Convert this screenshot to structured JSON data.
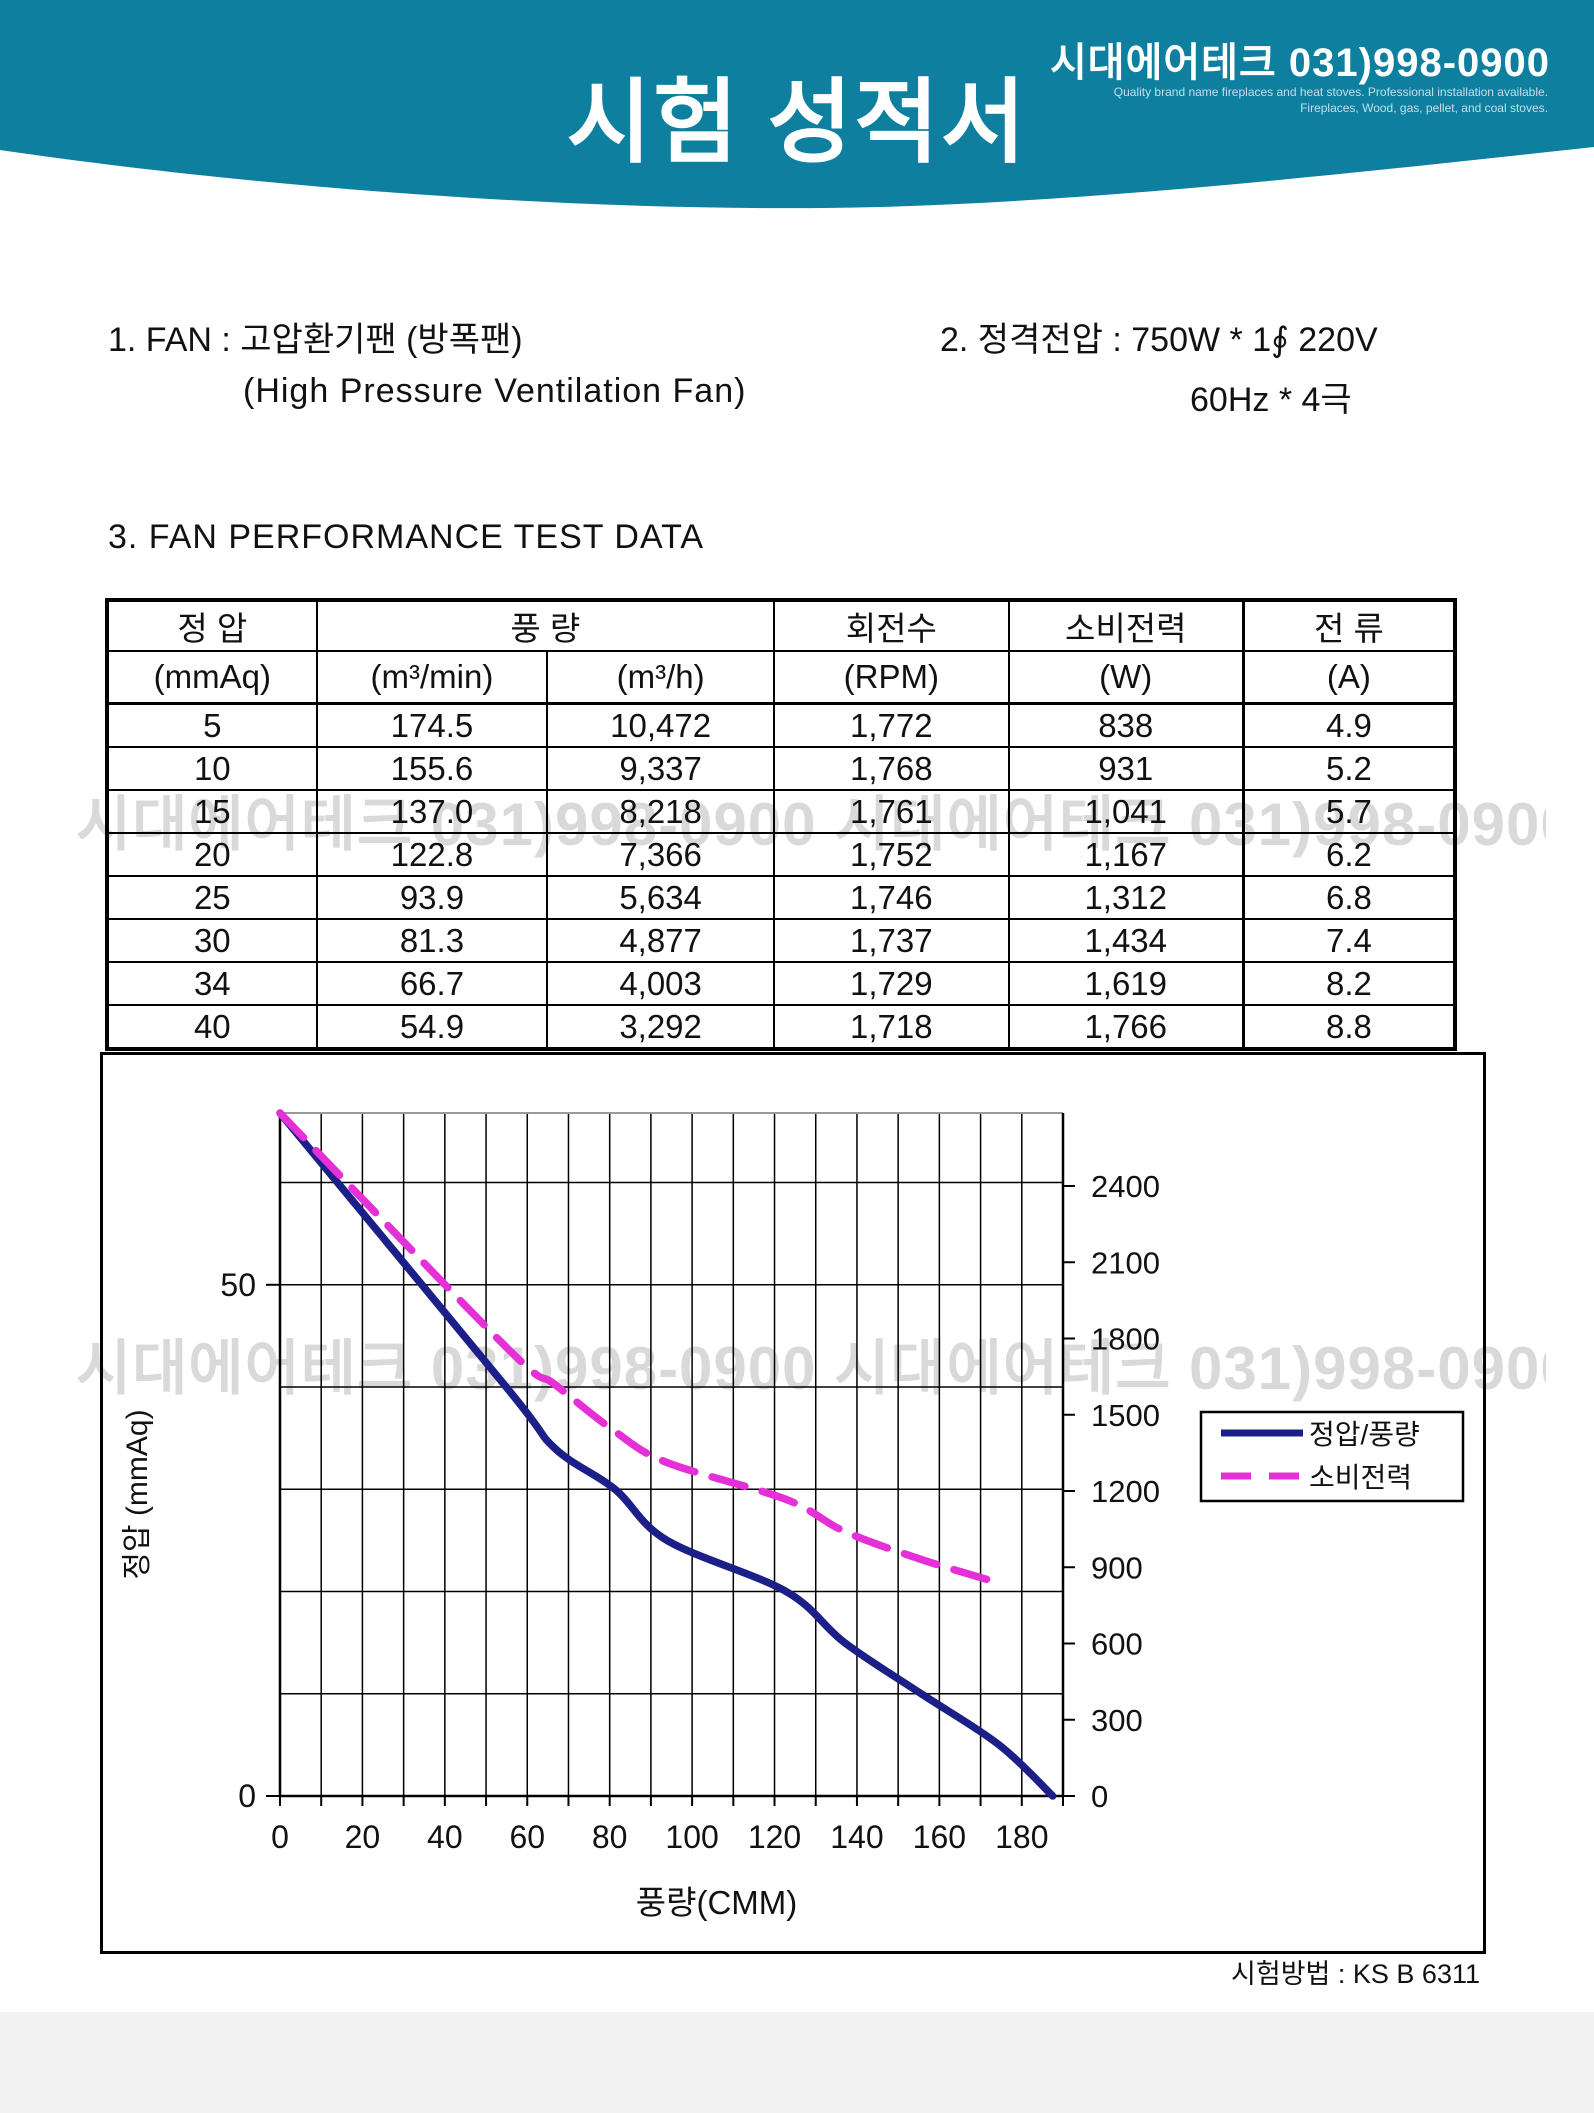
{
  "header": {
    "title": "시험 성적서",
    "company": "시대에어테크 031)998-0900",
    "tagline1": "Quality brand name fireplaces and heat stoves. Professional installation available.",
    "tagline2": "Fireplaces, Wood, gas, pellet, and coal stoves.",
    "banner_color": "#0e7f9f"
  },
  "watermark": {
    "text": "시대에어테크 031)998-0900 시대에어테크 031)998-0900"
  },
  "sections": {
    "fan_line1": "1. FAN  :  고압환기팬 (방폭팬)",
    "fan_line2": "(High  Pressure  Ventilation  Fan)",
    "power_line1": "2. 정격전압  :  750W  *  1∮ 220V",
    "power_line2": "60Hz   *   4극",
    "test_heading": "3. FAN  PERFORMANCE  TEST  DATA"
  },
  "table": {
    "header_row1": {
      "pressure": "정   압",
      "flow": "풍   량",
      "rpm": "회전수",
      "power": "소비전력",
      "current": "전   류"
    },
    "header_row2": {
      "pressure_unit": "(mmAq)",
      "flow_min_unit": "(m³/min)",
      "flow_h_unit": "(m³/h)",
      "rpm_unit": "(RPM)",
      "power_unit": "(W)",
      "current_unit": "(A)"
    },
    "rows": [
      [
        "5",
        "174.5",
        "10,472",
        "1,772",
        "838",
        "4.9"
      ],
      [
        "10",
        "155.6",
        "9,337",
        "1,768",
        "931",
        "5.2"
      ],
      [
        "15",
        "137.0",
        "8,218",
        "1,761",
        "1,041",
        "5.7"
      ],
      [
        "20",
        "122.8",
        "7,366",
        "1,752",
        "1,167",
        "6.2"
      ],
      [
        "25",
        "93.9",
        "5,634",
        "1,746",
        "1,312",
        "6.8"
      ],
      [
        "30",
        "81.3",
        "4,877",
        "1,737",
        "1,434",
        "7.4"
      ],
      [
        "34",
        "66.7",
        "4,003",
        "1,729",
        "1,619",
        "8.2"
      ],
      [
        "40",
        "54.9",
        "3,292",
        "1,718",
        "1,766",
        "8.8"
      ]
    ]
  },
  "chart_data": {
    "type": "line",
    "x_axis": {
      "label": "풍량(CMM)",
      "ticks": [
        0,
        20,
        40,
        60,
        80,
        100,
        120,
        140,
        160,
        180
      ],
      "minor_step": 10,
      "max": 190
    },
    "y_left": {
      "label": "정압 (mmAq)",
      "ticks": [
        0,
        50
      ],
      "grid_step": 10,
      "max": 66.8
    },
    "y_right": {
      "ticks": [
        0,
        300,
        600,
        900,
        1200,
        1500,
        1800,
        2100,
        2400
      ],
      "max": 2687
    },
    "grid": true,
    "legend_position": "middle-right",
    "series": [
      {
        "name": "정압/풍량",
        "axis": "left",
        "style": "solid",
        "color": "#1c1f87",
        "x": [
          0,
          54.9,
          66.7,
          81.3,
          93.9,
          122.8,
          137.0,
          155.6,
          174.5,
          187.5
        ],
        "y": [
          66.8,
          40,
          34,
          30,
          25,
          20,
          15,
          10,
          5,
          0
        ]
      },
      {
        "name": "소비전력",
        "axis": "right",
        "style": "dashed",
        "color": "#e52fd7",
        "x": [
          0,
          54.9,
          66.7,
          81.3,
          93.9,
          122.8,
          137.0,
          155.6,
          174.5
        ],
        "y": [
          2687,
          1766,
          1619,
          1434,
          1312,
          1167,
          1041,
          931,
          838
        ]
      }
    ]
  },
  "footer": {
    "test_method": "시험방법 : KS B 6311"
  }
}
